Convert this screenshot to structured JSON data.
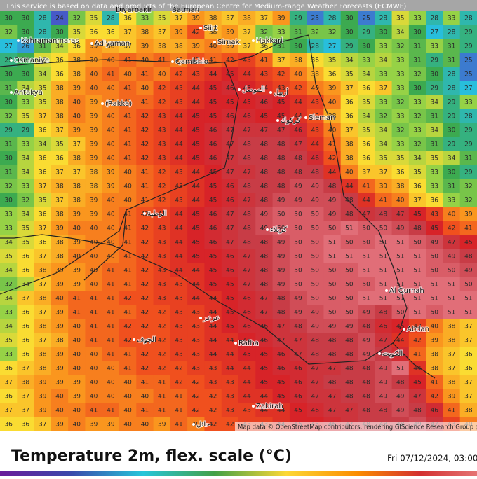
{
  "banner": "This service is based on data and products of the European Centre for Medium-range Weather Forecasts (ECMWF)",
  "attribution": "Map data © OpenStreetMap contributors, rendering GIScience Research Group @ He",
  "footer": {
    "title": "Temperature 2m, flex. scale (°C)",
    "datetime": "Fri 07/12/2024, 03:00"
  },
  "places": [
    "Kahramanmaras",
    "Adiyaman",
    "Diyarbakir",
    "Batman",
    "Siirt",
    "Sirnak",
    "Hakkari",
    "Osmaniye",
    "Qamishlo",
    "Antakya",
    "(Rakka)",
    "الموصل",
    "أربيل",
    "كركوك",
    "Sleman",
    "الرطبة",
    "كربلاء",
    "Al Qurnah",
    "Abdan",
    "Rafha",
    "عرعر",
    "الجوف",
    "الكويت",
    "Zabirah",
    "حائل"
  ],
  "grid": {
    "rows": [
      [
        30,
        30,
        28,
        24,
        32,
        35,
        28,
        36,
        33,
        35,
        37,
        39,
        38,
        37,
        38,
        37,
        39,
        29,
        25,
        28,
        30,
        25,
        28,
        35,
        33,
        28,
        33,
        28
      ],
      [
        32,
        30,
        28,
        30,
        35,
        36,
        36,
        37,
        38,
        37,
        39,
        42,
        38,
        39,
        37,
        32,
        33,
        31,
        32,
        32,
        30,
        29,
        30,
        34,
        30,
        27,
        28,
        29
      ],
      [
        27,
        26,
        31,
        34,
        36,
        39,
        38,
        37,
        39,
        38,
        38,
        39,
        40,
        39,
        37,
        36,
        31,
        30,
        28,
        27,
        29,
        30,
        33,
        32,
        31,
        33,
        31,
        29
      ],
      [
        29,
        30,
        35,
        36,
        38,
        39,
        40,
        41,
        40,
        41,
        40,
        42,
        41,
        42,
        43,
        41,
        37,
        38,
        36,
        35,
        34,
        33,
        34,
        33,
        31,
        29,
        31,
        25
      ],
      [
        30,
        30,
        34,
        36,
        38,
        40,
        41,
        40,
        41,
        40,
        42,
        43,
        44,
        45,
        44,
        43,
        42,
        40,
        38,
        36,
        35,
        34,
        33,
        33,
        32,
        30,
        28,
        25
      ],
      [
        31,
        34,
        35,
        38,
        39,
        40,
        40,
        41,
        40,
        42,
        43,
        44,
        45,
        46,
        45,
        44,
        43,
        42,
        40,
        39,
        37,
        36,
        37,
        33,
        30,
        29,
        28,
        27
      ],
      [
        30,
        33,
        35,
        38,
        40,
        39,
        40,
        41,
        41,
        42,
        43,
        44,
        45,
        45,
        45,
        46,
        45,
        44,
        43,
        40,
        36,
        35,
        33,
        32,
        33,
        34,
        29,
        33
      ],
      [
        32,
        35,
        37,
        38,
        40,
        39,
        40,
        41,
        42,
        43,
        44,
        45,
        45,
        46,
        46,
        45,
        45,
        44,
        42,
        38,
        36,
        34,
        32,
        33,
        32,
        31,
        29,
        28
      ],
      [
        29,
        29,
        36,
        37,
        39,
        39,
        40,
        41,
        42,
        43,
        44,
        45,
        46,
        47,
        47,
        47,
        47,
        46,
        43,
        40,
        37,
        35,
        34,
        32,
        33,
        34,
        30,
        29
      ],
      [
        31,
        33,
        34,
        35,
        37,
        39,
        40,
        41,
        42,
        43,
        44,
        45,
        46,
        47,
        48,
        48,
        48,
        47,
        44,
        41,
        38,
        36,
        34,
        33,
        32,
        31,
        29,
        29
      ],
      [
        30,
        34,
        36,
        36,
        38,
        39,
        40,
        41,
        42,
        43,
        44,
        45,
        46,
        47,
        48,
        48,
        48,
        48,
        46,
        42,
        38,
        36,
        35,
        35,
        34,
        35,
        34,
        31
      ],
      [
        31,
        34,
        36,
        37,
        37,
        38,
        39,
        40,
        41,
        42,
        43,
        44,
        45,
        47,
        47,
        48,
        48,
        48,
        48,
        44,
        40,
        37,
        37,
        36,
        35,
        33,
        30,
        29
      ],
      [
        32,
        33,
        37,
        38,
        38,
        38,
        39,
        40,
        41,
        42,
        43,
        44,
        45,
        46,
        48,
        48,
        48,
        49,
        49,
        48,
        44,
        41,
        39,
        38,
        36,
        33,
        31,
        32
      ],
      [
        30,
        32,
        35,
        37,
        38,
        39,
        40,
        40,
        41,
        42,
        43,
        44,
        45,
        46,
        47,
        48,
        49,
        49,
        49,
        49,
        48,
        44,
        41,
        40,
        37,
        36,
        33,
        32
      ],
      [
        33,
        34,
        36,
        38,
        39,
        39,
        40,
        41,
        42,
        43,
        44,
        45,
        46,
        47,
        48,
        49,
        50,
        50,
        50,
        49,
        48,
        47,
        48,
        47,
        45,
        43,
        40,
        39
      ],
      [
        33,
        35,
        37,
        39,
        40,
        40,
        40,
        41,
        42,
        43,
        44,
        45,
        46,
        47,
        48,
        49,
        50,
        50,
        50,
        50,
        51,
        50,
        50,
        49,
        48,
        45,
        42,
        41
      ],
      [
        34,
        35,
        36,
        38,
        39,
        40,
        40,
        41,
        42,
        43,
        44,
        45,
        46,
        47,
        48,
        48,
        49,
        50,
        50,
        51,
        50,
        50,
        51,
        51,
        50,
        49,
        47,
        45
      ],
      [
        35,
        36,
        37,
        38,
        40,
        40,
        40,
        41,
        42,
        43,
        44,
        45,
        45,
        46,
        47,
        48,
        49,
        50,
        50,
        51,
        51,
        51,
        51,
        51,
        51,
        50,
        49,
        48
      ],
      [
        34,
        36,
        38,
        39,
        39,
        40,
        41,
        41,
        42,
        43,
        44,
        44,
        45,
        46,
        47,
        48,
        49,
        50,
        50,
        50,
        50,
        51,
        51,
        51,
        51,
        50,
        50,
        49
      ],
      [
        32,
        34,
        37,
        39,
        39,
        40,
        41,
        41,
        42,
        43,
        43,
        44,
        45,
        45,
        47,
        48,
        49,
        50,
        50,
        50,
        50,
        50,
        51,
        51,
        51,
        51,
        51,
        50
      ],
      [
        34,
        37,
        38,
        40,
        41,
        41,
        41,
        42,
        42,
        43,
        43,
        44,
        44,
        45,
        46,
        47,
        48,
        49,
        50,
        50,
        50,
        51,
        51,
        51,
        51,
        51,
        51,
        51
      ],
      [
        33,
        36,
        37,
        39,
        41,
        41,
        41,
        41,
        42,
        42,
        43,
        43,
        44,
        45,
        46,
        47,
        48,
        49,
        49,
        50,
        50,
        49,
        48,
        50,
        51,
        50,
        51,
        51
      ],
      [
        34,
        36,
        38,
        39,
        40,
        41,
        41,
        42,
        42,
        42,
        43,
        43,
        44,
        45,
        46,
        46,
        47,
        48,
        49,
        49,
        49,
        48,
        46,
        45,
        43,
        40,
        38,
        37
      ],
      [
        35,
        36,
        37,
        38,
        40,
        41,
        41,
        42,
        42,
        42,
        43,
        43,
        44,
        44,
        45,
        46,
        47,
        47,
        48,
        48,
        48,
        49,
        47,
        44,
        42,
        39,
        38,
        37
      ],
      [
        33,
        36,
        38,
        39,
        40,
        40,
        41,
        41,
        42,
        42,
        43,
        43,
        44,
        44,
        45,
        45,
        46,
        47,
        48,
        48,
        48,
        49,
        48,
        46,
        41,
        38,
        37,
        36
      ],
      [
        36,
        37,
        38,
        39,
        40,
        40,
        40,
        41,
        42,
        42,
        42,
        43,
        43,
        44,
        44,
        45,
        46,
        46,
        47,
        47,
        48,
        48,
        49,
        51,
        44,
        38,
        37,
        36
      ],
      [
        37,
        38,
        39,
        39,
        39,
        40,
        40,
        40,
        41,
        41,
        42,
        42,
        43,
        43,
        44,
        45,
        45,
        46,
        47,
        48,
        48,
        48,
        49,
        48,
        45,
        41,
        38,
        37
      ],
      [
        36,
        37,
        39,
        40,
        39,
        40,
        40,
        40,
        40,
        41,
        41,
        42,
        42,
        43,
        44,
        44,
        45,
        46,
        47,
        47,
        48,
        48,
        49,
        49,
        47,
        42,
        39,
        37
      ],
      [
        37,
        37,
        39,
        40,
        40,
        41,
        41,
        40,
        41,
        41,
        41,
        42,
        42,
        43,
        43,
        44,
        44,
        45,
        46,
        47,
        47,
        48,
        48,
        49,
        48,
        46,
        41,
        38
      ],
      [
        36,
        36,
        37,
        39,
        40,
        39,
        39,
        40,
        40,
        39,
        41,
        40,
        42,
        42,
        43,
        43,
        44,
        45,
        45,
        46,
        47,
        48,
        48,
        48,
        49,
        47,
        43,
        40
      ]
    ]
  }
}
